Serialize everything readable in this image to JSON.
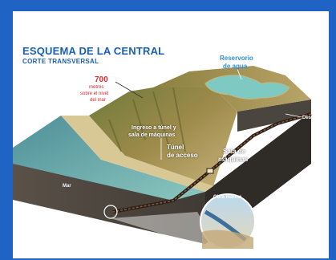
{
  "title": "ESQUEMA DE LA CENTRAL",
  "subtitle": "CORTE TRANSVERSAL",
  "altitude": {
    "value": "700",
    "unit": "metros",
    "line1": "sobre el nivel",
    "line2": "del mar"
  },
  "reservoir": {
    "line1": "Reservorio",
    "line2": "de agua"
  },
  "entrance": {
    "line1": "Ingreso a túnel y",
    "line2": "sala de máquinas"
  },
  "access_tunnel": {
    "line1": "Túnel",
    "line2": "de acceso"
  },
  "machine_room": {
    "line1": "Sala de",
    "line2": "máquinas"
  },
  "sea_label": "Mar",
  "drain_label": "Desagüe",
  "inset_label": "Obra marina",
  "colors": {
    "frame_blue": "#1f63c4",
    "title_blue": "#1a5fb4",
    "altitude_red": "#e0262b",
    "reservoir_water": "#7fc9c3",
    "sea_water": "#5aa3a8",
    "rock_side": "#4a453e"
  }
}
